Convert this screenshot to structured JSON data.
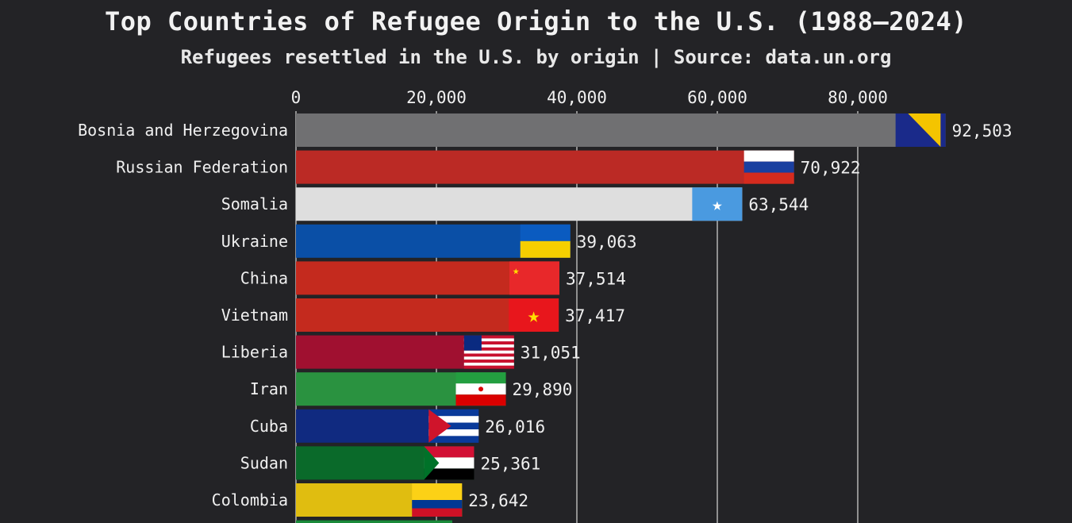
{
  "chart_data": {
    "type": "bar",
    "orientation": "horizontal",
    "title": "Top Countries of Refugee Origin to the U.S. (1988–2024)",
    "subtitle": "Refugees resettled in the U.S. by origin | Source: data.un.org",
    "xlim": [
      0,
      92503
    ],
    "x_ticks": [
      "0",
      "20,000",
      "40,000",
      "60,000",
      "80,000"
    ],
    "grid": true,
    "categories": [
      "Bosnia and Herzegovina",
      "Russian Federation",
      "Somalia",
      "Ukraine",
      "China",
      "Vietnam",
      "Liberia",
      "Iran",
      "Cuba",
      "Sudan",
      "Colombia"
    ],
    "values": [
      92503,
      70922,
      63544,
      39063,
      37514,
      37417,
      31051,
      29890,
      26016,
      25361,
      23642
    ],
    "value_labels": [
      "92,503",
      "70,922",
      "63,544",
      "39,063",
      "37,514",
      "37,417",
      "31,051",
      "29,890",
      "26,016",
      "25,361",
      "23,642"
    ],
    "bar_colors": [
      "#707072",
      "#bb2a25",
      "#dedede",
      "#0a4fa6",
      "#c42a1e",
      "#c42a1e",
      "#a01030",
      "#2a9240",
      "#102a80",
      "#0a6a2a",
      "#e0bd10"
    ],
    "flags": [
      "bosnia-flag-icon",
      "russia-flag-icon",
      "somalia-flag-icon",
      "ukraine-flag-icon",
      "china-flag-icon",
      "vietnam-flag-icon",
      "liberia-flag-icon",
      "iran-flag-icon",
      "cuba-flag-icon",
      "sudan-flag-icon",
      "colombia-flag-icon"
    ]
  },
  "background_color": "#232326"
}
